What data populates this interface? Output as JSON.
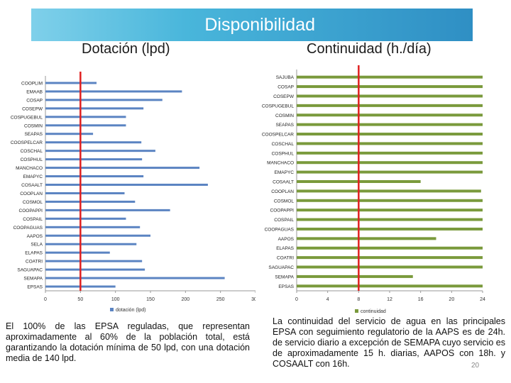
{
  "slide": {
    "title": "Disponibilidad",
    "left_heading": "Dotación (lpd)",
    "right_heading": "Continuidad (h./día)",
    "left_text": "El 100% de las EPSA reguladas, que representan aproximadamente al 60% de la población total, está garantizando la dotación mínima de 50 lpd, con una dotación media de 140 lpd.",
    "right_text": "La continuidad del servicio de agua en las principales EPSA con seguimiento regulatorio de la AAPS es de 24h. de servicio diario a excepción de SEMAPA cuyo servicio es de aproximadamente 15 h. diarias, AAPOS con 18h. y COSAALT con 16h.",
    "page_number": "20"
  },
  "colors": {
    "banner": "#49b6db",
    "dotacion_bar": "#5b84c2",
    "continuidad_bar": "#7a9a3c",
    "reference_line": "#e02020"
  },
  "chart_data": [
    {
      "type": "bar",
      "orientation": "horizontal",
      "categories": [
        "COOPLIM",
        "EMAAB",
        "COSAP",
        "COSEPW",
        "COSPUGEBUL",
        "COSMIN",
        "SEAPAS",
        "COOSPELCAR",
        "COSCHAL",
        "COSPHUL",
        "MANCHACO",
        "EMAPYC",
        "COSAALT",
        "COOPLAN",
        "COSMOL",
        "COOPAPPI",
        "COSPAIL",
        "COOPAGUAS",
        "AAPOS",
        "SELA",
        "ELAPAS",
        "COATRI",
        "SAGUAPAC",
        "SEMAPA",
        "EPSAS"
      ],
      "series": [
        {
          "name": "dotación (lpd)",
          "values": [
            73,
            195,
            167,
            140,
            115,
            115,
            68,
            137,
            157,
            138,
            220,
            140,
            232,
            113,
            128,
            178,
            115,
            135,
            150,
            130,
            92,
            138,
            142,
            256,
            100
          ]
        }
      ],
      "reference_line": 50,
      "xlim": [
        0,
        300
      ],
      "xticks": [
        "0",
        "50",
        "100",
        "150",
        "200",
        "250",
        "300"
      ],
      "legend": "bottom"
    },
    {
      "type": "bar",
      "orientation": "horizontal",
      "categories": [
        "SAJUBA",
        "COSAP",
        "COSEPW",
        "COSPUGEBUL",
        "COSMIN",
        "SEAPAS",
        "COOSPELCAR",
        "COSCHAL",
        "COSPHUL",
        "MANCHACO",
        "EMAPYC",
        "COSAALT",
        "COOPLAN",
        "COSMOL",
        "COOPAPPI",
        "COSPAIL",
        "COOPAGUAS",
        "AAPOS",
        "ELAPAS",
        "COATRI",
        "SAGUAPAC",
        "SEMAPA",
        "EPSAS"
      ],
      "series": [
        {
          "name": "continuidad",
          "values": [
            24,
            24,
            24,
            24,
            24,
            24,
            24,
            24,
            24,
            24,
            24,
            16,
            23.8,
            24,
            24,
            24,
            24,
            18,
            24,
            24,
            24,
            15,
            24
          ]
        }
      ],
      "reference_line": 8,
      "xlim": [
        0,
        24
      ],
      "xticks": [
        "0",
        "4",
        "8",
        "12",
        "16",
        "20",
        "24"
      ],
      "legend": "bottom"
    }
  ]
}
